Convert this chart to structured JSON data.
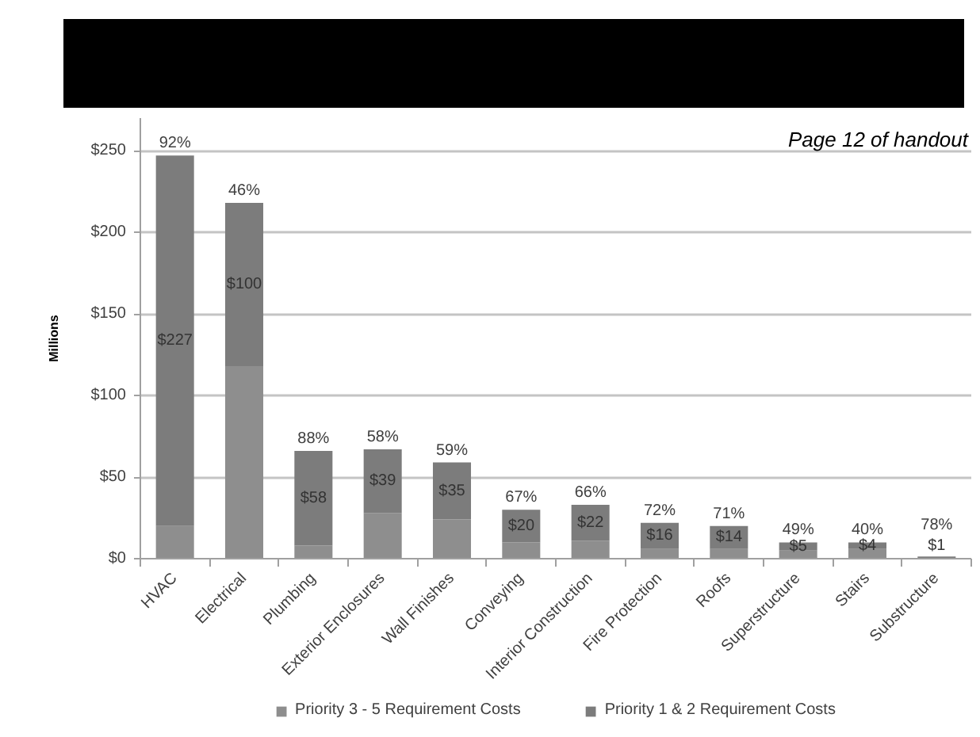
{
  "chart_data": {
    "type": "bar",
    "stacked": true,
    "categories": [
      "HVAC",
      "Electrical",
      "Plumbing",
      "Exterior Enclosures",
      "Wall Finishes",
      "Conveying",
      "Interior Construction",
      "Fire Protection",
      "Roofs",
      "Superstructure",
      "Stairs",
      "Substructure"
    ],
    "series": [
      {
        "name": "Priority 3 - 5 Requirement Costs",
        "color": "#8e8e8e",
        "values": [
          20,
          118,
          8,
          28,
          24,
          10,
          11,
          6,
          6,
          5,
          6,
          0.3
        ]
      },
      {
        "name": "Priority 1 & 2 Requirement Costs",
        "color": "#7c7c7c",
        "values": [
          227,
          100,
          58,
          39,
          35,
          20,
          22,
          16,
          14,
          5,
          4,
          1
        ],
        "value_labels": [
          "$227",
          "$100",
          "$58",
          "$39",
          "$35",
          "$20",
          "$22",
          "$16",
          "$14",
          "$5",
          "$4",
          "$1"
        ]
      }
    ],
    "ylabel": "Millions",
    "ylim": [
      0,
      270
    ],
    "yticks": [
      {
        "value": 0,
        "label": "$0"
      },
      {
        "value": 50,
        "label": "$50"
      },
      {
        "value": 100,
        "label": "$100"
      },
      {
        "value": 150,
        "label": "$150"
      },
      {
        "value": 200,
        "label": "$200"
      },
      {
        "value": 250,
        "label": "$250"
      }
    ],
    "grid": "y",
    "legend": "bottom",
    "annotations": [
      "Page 12 of handout",
      {
        "text": "92%",
        "x": "HVAC",
        "y": 247
      },
      {
        "text": "46%",
        "x": "Electrical",
        "y": 218
      },
      {
        "text": "88%",
        "x": "Plumbing",
        "y": 66
      },
      {
        "text": "58%",
        "x": "Exterior Enclosures",
        "y": 67
      },
      {
        "text": "59%",
        "x": "Wall Finishes",
        "y": 59
      },
      {
        "text": "67%",
        "x": "Conveying",
        "y": 30
      },
      {
        "text": "66%",
        "x": "Interior Construction",
        "y": 33
      },
      {
        "text": "72%",
        "x": "Fire Protection",
        "y": 22
      },
      {
        "text": "71%",
        "x": "Roofs",
        "y": 20
      },
      {
        "text": "49%",
        "x": "Superstructure",
        "y": 10
      },
      {
        "text": "40%",
        "x": "Stairs",
        "y": 10
      },
      {
        "text": "78%",
        "x": "Substructure",
        "y": 1.3
      }
    ]
  }
}
